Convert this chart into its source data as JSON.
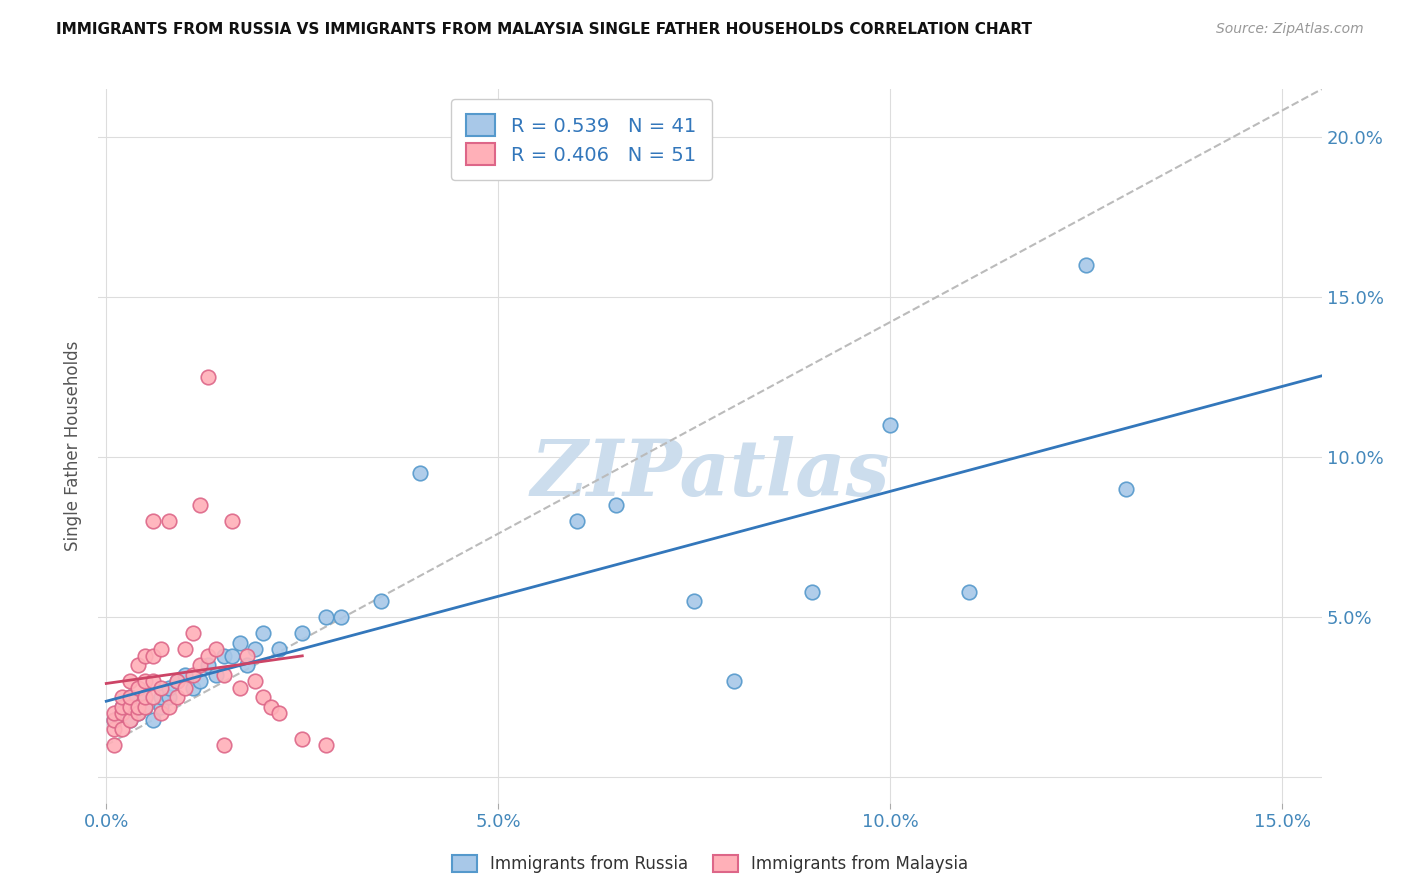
{
  "title": "IMMIGRANTS FROM RUSSIA VS IMMIGRANTS FROM MALAYSIA SINGLE FATHER HOUSEHOLDS CORRELATION CHART",
  "source": "Source: ZipAtlas.com",
  "ylabel": "Single Father Households",
  "legend_russia": "Immigrants from Russia",
  "legend_malaysia": "Immigrants from Malaysia",
  "R_russia": "0.539",
  "N_russia": "41",
  "R_malaysia": "0.406",
  "N_malaysia": "51",
  "xlim": [
    -0.001,
    0.155
  ],
  "ylim": [
    -0.008,
    0.215
  ],
  "yticks": [
    0.0,
    0.05,
    0.1,
    0.15,
    0.2
  ],
  "ytick_labels": [
    "",
    "5.0%",
    "10.0%",
    "15.0%",
    "20.0%"
  ],
  "xticks": [
    0.0,
    0.05,
    0.1,
    0.15
  ],
  "xtick_labels": [
    "0.0%",
    "5.0%",
    "10.0%",
    "15.0%"
  ],
  "color_russia": "#a8c8e8",
  "color_russia_edge": "#5599cc",
  "color_malaysia": "#ffb0b8",
  "color_malaysia_edge": "#dd6688",
  "color_russia_line": "#3377bb",
  "color_malaysia_line": "#cc4466",
  "color_gray_dash": "#bbbbbb",
  "russia_scatter": [
    [
      0.001,
      0.018
    ],
    [
      0.002,
      0.02
    ],
    [
      0.002,
      0.022
    ],
    [
      0.003,
      0.018
    ],
    [
      0.003,
      0.025
    ],
    [
      0.004,
      0.02
    ],
    [
      0.004,
      0.022
    ],
    [
      0.005,
      0.025
    ],
    [
      0.005,
      0.022
    ],
    [
      0.006,
      0.018
    ],
    [
      0.007,
      0.022
    ],
    [
      0.007,
      0.025
    ],
    [
      0.008,
      0.025
    ],
    [
      0.008,
      0.028
    ],
    [
      0.009,
      0.03
    ],
    [
      0.01,
      0.032
    ],
    [
      0.011,
      0.028
    ],
    [
      0.012,
      0.03
    ],
    [
      0.013,
      0.035
    ],
    [
      0.014,
      0.032
    ],
    [
      0.015,
      0.038
    ],
    [
      0.016,
      0.038
    ],
    [
      0.017,
      0.042
    ],
    [
      0.018,
      0.035
    ],
    [
      0.019,
      0.04
    ],
    [
      0.02,
      0.045
    ],
    [
      0.022,
      0.04
    ],
    [
      0.025,
      0.045
    ],
    [
      0.028,
      0.05
    ],
    [
      0.03,
      0.05
    ],
    [
      0.035,
      0.055
    ],
    [
      0.04,
      0.095
    ],
    [
      0.06,
      0.08
    ],
    [
      0.065,
      0.085
    ],
    [
      0.075,
      0.055
    ],
    [
      0.08,
      0.03
    ],
    [
      0.09,
      0.058
    ],
    [
      0.1,
      0.11
    ],
    [
      0.11,
      0.058
    ],
    [
      0.125,
      0.16
    ],
    [
      0.13,
      0.09
    ]
  ],
  "malaysia_scatter": [
    [
      0.001,
      0.01
    ],
    [
      0.001,
      0.015
    ],
    [
      0.001,
      0.018
    ],
    [
      0.001,
      0.02
    ],
    [
      0.002,
      0.015
    ],
    [
      0.002,
      0.02
    ],
    [
      0.002,
      0.022
    ],
    [
      0.002,
      0.025
    ],
    [
      0.003,
      0.018
    ],
    [
      0.003,
      0.022
    ],
    [
      0.003,
      0.025
    ],
    [
      0.003,
      0.03
    ],
    [
      0.004,
      0.02
    ],
    [
      0.004,
      0.022
    ],
    [
      0.004,
      0.028
    ],
    [
      0.004,
      0.035
    ],
    [
      0.005,
      0.022
    ],
    [
      0.005,
      0.025
    ],
    [
      0.005,
      0.03
    ],
    [
      0.005,
      0.038
    ],
    [
      0.006,
      0.025
    ],
    [
      0.006,
      0.03
    ],
    [
      0.006,
      0.038
    ],
    [
      0.006,
      0.08
    ],
    [
      0.007,
      0.02
    ],
    [
      0.007,
      0.028
    ],
    [
      0.007,
      0.04
    ],
    [
      0.008,
      0.022
    ],
    [
      0.008,
      0.08
    ],
    [
      0.009,
      0.025
    ],
    [
      0.009,
      0.03
    ],
    [
      0.01,
      0.028
    ],
    [
      0.01,
      0.04
    ],
    [
      0.011,
      0.032
    ],
    [
      0.011,
      0.045
    ],
    [
      0.012,
      0.035
    ],
    [
      0.012,
      0.085
    ],
    [
      0.013,
      0.038
    ],
    [
      0.013,
      0.125
    ],
    [
      0.014,
      0.04
    ],
    [
      0.015,
      0.01
    ],
    [
      0.015,
      0.032
    ],
    [
      0.016,
      0.08
    ],
    [
      0.017,
      0.028
    ],
    [
      0.018,
      0.038
    ],
    [
      0.019,
      0.03
    ],
    [
      0.02,
      0.025
    ],
    [
      0.021,
      0.022
    ],
    [
      0.022,
      0.02
    ],
    [
      0.025,
      0.012
    ],
    [
      0.028,
      0.01
    ]
  ],
  "background_color": "#ffffff",
  "grid_color": "#dddddd",
  "watermark": "ZIPatlas",
  "watermark_color": "#ccdded"
}
